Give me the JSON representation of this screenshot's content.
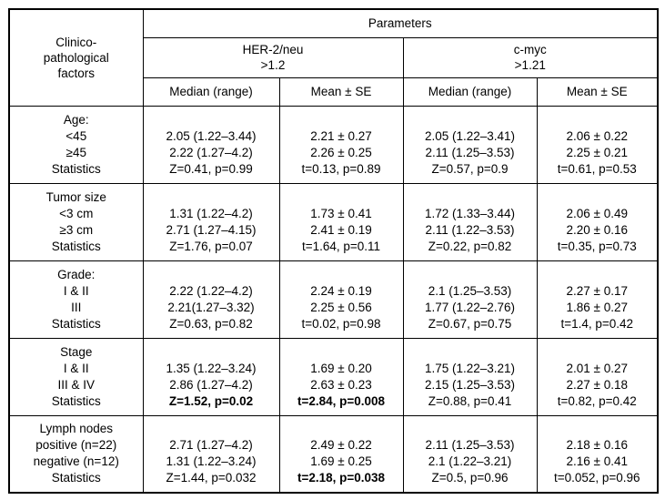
{
  "table": {
    "header": {
      "factors_label": "Clinico-\npathological\nfactors",
      "parameters_label": "Parameters",
      "groups": [
        {
          "label": "HER-2/neu\n>1.2"
        },
        {
          "label": "c-myc\n>1.21"
        }
      ],
      "subheaders": [
        "Median (range)",
        "Mean ± SE",
        "Median (range)",
        "Mean ± SE"
      ]
    },
    "blocks": [
      {
        "labels": [
          "Age:",
          "<45",
          "≥45",
          "Statistics"
        ],
        "cells": [
          [
            "",
            "2.05 (1.22–3.44)",
            "2.22 (1.27–4.2)",
            "Z=0.41, p=0.99"
          ],
          [
            "",
            "2.21 ± 0.27",
            "2.26 ± 0.25",
            "t=0.13, p=0.89"
          ],
          [
            "",
            "2.05 (1.22–3.41)",
            "2.11 (1.25–3.53)",
            "Z=0.57, p=0.9"
          ],
          [
            "",
            "2.06 ± 0.22",
            "2.25 ± 0.21",
            "t=0.61, p=0.53"
          ]
        ],
        "bold": []
      },
      {
        "labels": [
          "Tumor size",
          "<3 cm",
          "≥3 cm",
          "Statistics"
        ],
        "cells": [
          [
            "",
            "1.31 (1.22–4.2)",
            "2.71 (1.27–4.15)",
            "Z=1.76, p=0.07"
          ],
          [
            "",
            "1.73 ± 0.41",
            "2.41 ± 0.19",
            "t=1.64, p=0.11"
          ],
          [
            "",
            "1.72 (1.33–3.44)",
            "2.11 (1.22–3.53)",
            "Z=0.22, p=0.82"
          ],
          [
            "",
            "2.06 ± 0.49",
            "2.20 ± 0.16",
            "t=0.35, p=0.73"
          ]
        ],
        "bold": []
      },
      {
        "labels": [
          "Grade:",
          "I & II",
          "III",
          "Statistics"
        ],
        "cells": [
          [
            "",
            "2.22 (1.22–4.2)",
            "2.21(1.27–3.32)",
            "Z=0.63, p=0.82"
          ],
          [
            "",
            "2.24 ± 0.19",
            "2.25 ± 0.56",
            "t=0.02, p=0.98"
          ],
          [
            "",
            "2.1 (1.25–3.53)",
            "1.77 (1.22–2.76)",
            "Z=0.67, p=0.75"
          ],
          [
            "",
            "2.27 ± 0.17",
            "1.86 ± 0.27",
            "t=1.4, p=0.42"
          ]
        ],
        "bold": []
      },
      {
        "labels": [
          "Stage",
          "I & II",
          "III & IV",
          "Statistics"
        ],
        "cells": [
          [
            "",
            "1.35 (1.22–3.24)",
            "2.86 (1.27–4.2)",
            "Z=1.52, p=0.02"
          ],
          [
            "",
            "1.69 ± 0.20",
            "2.63 ± 0.23",
            "t=2.84, p=0.008"
          ],
          [
            "",
            "1.75 (1.22–3.21)",
            "2.15 (1.25–3.53)",
            "Z=0.88, p=0.41"
          ],
          [
            "",
            "2.01 ± 0.27",
            "2.27 ± 0.18",
            "t=0.82, p=0.42"
          ]
        ],
        "bold": [
          [
            1,
            3
          ],
          [
            2,
            3
          ]
        ]
      },
      {
        "labels": [
          "Lymph nodes",
          "positive (n=22)",
          "negative (n=12)",
          "Statistics"
        ],
        "cells": [
          [
            "",
            "2.71 (1.27–4.2)",
            "1.31 (1.22–3.24)",
            "Z=1.44, p=0.032"
          ],
          [
            "",
            "2.49 ± 0.22",
            "1.69 ± 0.25",
            "t=2.18, p=0.038"
          ],
          [
            "",
            "2.11 (1.25–3.53)",
            "2.1 (1.22–3.21)",
            "Z=0.5, p=0.96"
          ],
          [
            "",
            "2.18 ± 0.16",
            "2.16 ± 0.41",
            "t=0.052, p=0.96"
          ]
        ],
        "bold": [
          [
            2,
            3
          ]
        ]
      }
    ]
  }
}
